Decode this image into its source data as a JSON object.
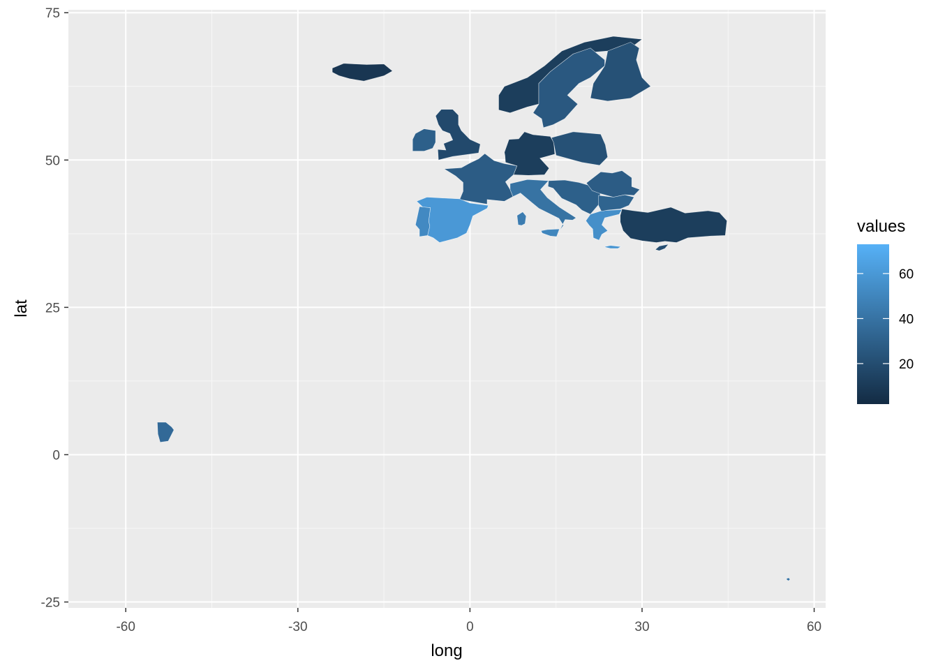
{
  "chart_data": {
    "type": "choropleth-map",
    "title": "",
    "xlabel": "long",
    "ylabel": "lat",
    "xlim": [
      -70,
      62
    ],
    "ylim": [
      -26,
      75.5
    ],
    "x_ticks": [
      -60,
      -30,
      0,
      30,
      60
    ],
    "y_ticks": [
      -25,
      0,
      25,
      50,
      75
    ],
    "grid": true,
    "fill_scale": {
      "name": "values",
      "type": "continuous",
      "low_color": "#132B43",
      "high_color": "#56B1F7",
      "min": 2,
      "max": 73,
      "breaks": [
        20,
        40,
        60
      ],
      "na_color": "#7F7F7F"
    },
    "legend_position": "right",
    "regions": [
      {
        "name": "Iceland",
        "value": 8
      },
      {
        "name": "Norway",
        "value": 12
      },
      {
        "name": "Sweden",
        "value": 26
      },
      {
        "name": "Finland",
        "value": 22
      },
      {
        "name": "Ireland",
        "value": 30
      },
      {
        "name": "United Kingdom",
        "value": 18
      },
      {
        "name": "France",
        "value": 28
      },
      {
        "name": "Spain",
        "value": 60
      },
      {
        "name": "Portugal",
        "value": 52
      },
      {
        "name": "Germany",
        "value": 12
      },
      {
        "name": "Poland",
        "value": 22
      },
      {
        "name": "Italy",
        "value": 40
      },
      {
        "name": "Balkans",
        "value": 30
      },
      {
        "name": "Greece",
        "value": 55
      },
      {
        "name": "Romania",
        "value": 28
      },
      {
        "name": "Bulgaria",
        "value": 32
      },
      {
        "name": "Turkey",
        "value": 12
      },
      {
        "name": "Cyprus",
        "value": 20
      },
      {
        "name": "Sardinia",
        "value": 45
      },
      {
        "name": "Sicily",
        "value": 50
      },
      {
        "name": "Crete",
        "value": 58
      },
      {
        "name": "French Guiana",
        "value": 35
      },
      {
        "name": "Réunion",
        "value": 40
      }
    ]
  }
}
